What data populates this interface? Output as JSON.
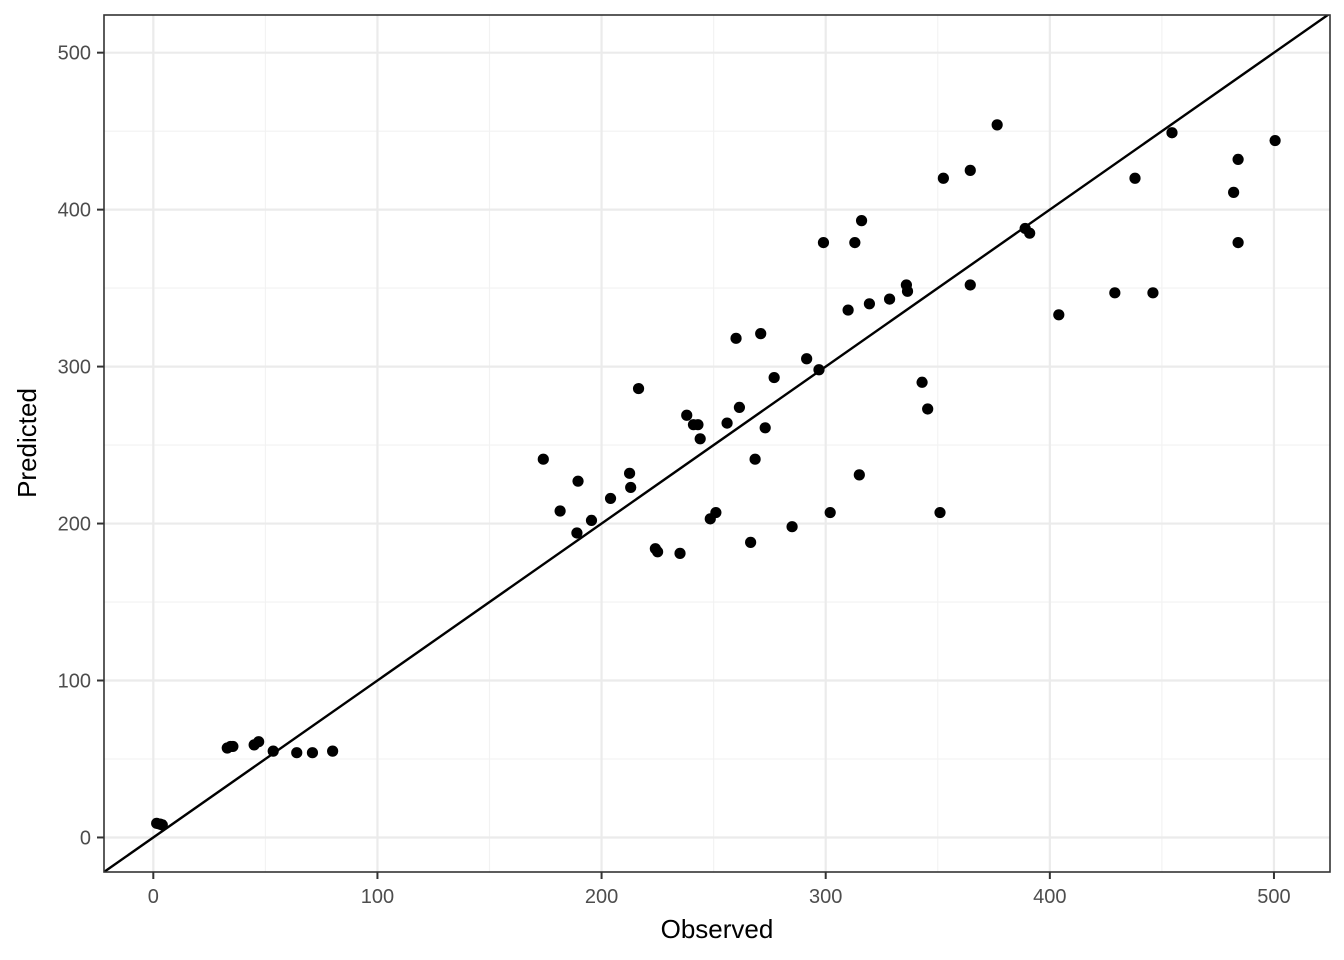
{
  "chart_data": {
    "type": "scatter",
    "title": "",
    "xlabel": "Observed",
    "ylabel": "Predicted",
    "xlim": [
      -22,
      525
    ],
    "ylim": [
      -22,
      524
    ],
    "x_ticks": [
      0,
      100,
      200,
      300,
      400,
      500
    ],
    "y_ticks": [
      0,
      100,
      200,
      300,
      400,
      500
    ],
    "x_tick_labels": [
      "0",
      "100",
      "200",
      "300",
      "400",
      "500"
    ],
    "y_tick_labels": [
      "0",
      "100",
      "200",
      "300",
      "400",
      "500"
    ],
    "grid": true,
    "reference_line": {
      "type": "identity",
      "slope": 1,
      "intercept": 0
    },
    "point_color": "#000000",
    "line_color": "#000000",
    "points": [
      {
        "x": 1.5,
        "y": 9
      },
      {
        "x": 3,
        "y": 8.5
      },
      {
        "x": 4,
        "y": 8
      },
      {
        "x": 33,
        "y": 57
      },
      {
        "x": 34.5,
        "y": 58
      },
      {
        "x": 35.5,
        "y": 58
      },
      {
        "x": 45,
        "y": 59
      },
      {
        "x": 47,
        "y": 61
      },
      {
        "x": 53.5,
        "y": 55
      },
      {
        "x": 64,
        "y": 54
      },
      {
        "x": 71,
        "y": 54
      },
      {
        "x": 80,
        "y": 55
      },
      {
        "x": 174,
        "y": 241
      },
      {
        "x": 181.5,
        "y": 208
      },
      {
        "x": 189,
        "y": 194
      },
      {
        "x": 189.5,
        "y": 227
      },
      {
        "x": 195.5,
        "y": 202
      },
      {
        "x": 204,
        "y": 216
      },
      {
        "x": 212.5,
        "y": 232
      },
      {
        "x": 213,
        "y": 223
      },
      {
        "x": 216.5,
        "y": 286
      },
      {
        "x": 224,
        "y": 184
      },
      {
        "x": 225,
        "y": 182
      },
      {
        "x": 235,
        "y": 181
      },
      {
        "x": 238,
        "y": 269
      },
      {
        "x": 241,
        "y": 263
      },
      {
        "x": 243,
        "y": 263
      },
      {
        "x": 244,
        "y": 254
      },
      {
        "x": 248.5,
        "y": 203
      },
      {
        "x": 251,
        "y": 207
      },
      {
        "x": 256,
        "y": 264
      },
      {
        "x": 260,
        "y": 318
      },
      {
        "x": 261.5,
        "y": 274
      },
      {
        "x": 266.5,
        "y": 188
      },
      {
        "x": 268.5,
        "y": 241
      },
      {
        "x": 271,
        "y": 321
      },
      {
        "x": 273,
        "y": 261
      },
      {
        "x": 277,
        "y": 293
      },
      {
        "x": 285,
        "y": 198
      },
      {
        "x": 291.5,
        "y": 305
      },
      {
        "x": 297,
        "y": 298
      },
      {
        "x": 299,
        "y": 379
      },
      {
        "x": 302,
        "y": 207
      },
      {
        "x": 310,
        "y": 336
      },
      {
        "x": 313,
        "y": 379
      },
      {
        "x": 315,
        "y": 231
      },
      {
        "x": 316,
        "y": 393
      },
      {
        "x": 319.5,
        "y": 340
      },
      {
        "x": 328.5,
        "y": 343
      },
      {
        "x": 336,
        "y": 352
      },
      {
        "x": 336.5,
        "y": 348
      },
      {
        "x": 343,
        "y": 290
      },
      {
        "x": 345.5,
        "y": 273
      },
      {
        "x": 351,
        "y": 207
      },
      {
        "x": 352.5,
        "y": 420
      },
      {
        "x": 364.5,
        "y": 425
      },
      {
        "x": 364.5,
        "y": 352
      },
      {
        "x": 376.5,
        "y": 454
      },
      {
        "x": 389,
        "y": 388
      },
      {
        "x": 391,
        "y": 385
      },
      {
        "x": 404,
        "y": 333
      },
      {
        "x": 429,
        "y": 347
      },
      {
        "x": 438,
        "y": 420
      },
      {
        "x": 446,
        "y": 347
      },
      {
        "x": 454.5,
        "y": 449
      },
      {
        "x": 482,
        "y": 411
      },
      {
        "x": 484,
        "y": 432
      },
      {
        "x": 484,
        "y": 379
      },
      {
        "x": 500.5,
        "y": 444
      }
    ]
  }
}
